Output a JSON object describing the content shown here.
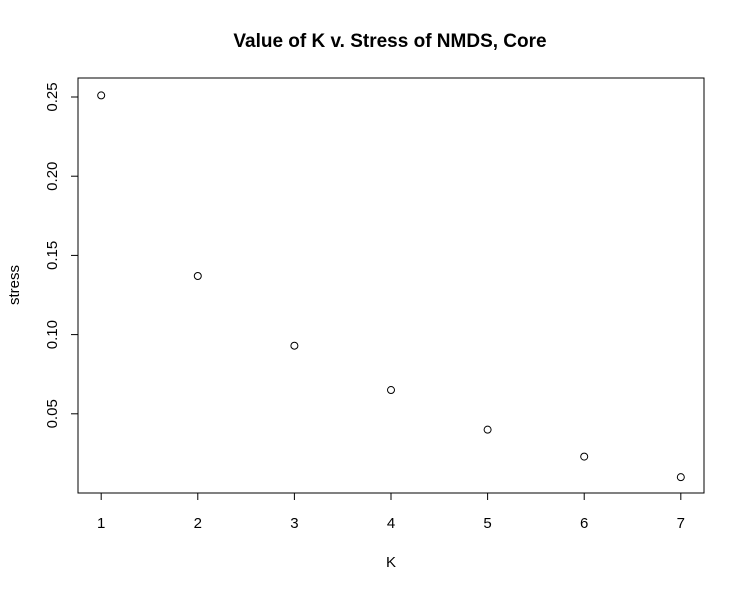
{
  "chart_data": {
    "type": "scatter",
    "title": "Value of K v. Stress of NMDS, Core",
    "xlabel": "K",
    "ylabel": "stress",
    "x": [
      1,
      2,
      3,
      4,
      5,
      6,
      7
    ],
    "y": [
      0.251,
      0.137,
      0.093,
      0.065,
      0.04,
      0.023,
      0.01
    ],
    "xticks": [
      "1",
      "2",
      "3",
      "4",
      "5",
      "6",
      "7"
    ],
    "yticks": [
      "0.05",
      "0.10",
      "0.15",
      "0.20",
      "0.25"
    ],
    "xlim": [
      0.76,
      7.24
    ],
    "ylim": [
      0.0,
      0.262
    ],
    "grid": false,
    "legend": "none",
    "marker": "open-circle",
    "colors": {
      "points": "#000000",
      "axes": "#000000",
      "background": "#ffffff"
    }
  }
}
